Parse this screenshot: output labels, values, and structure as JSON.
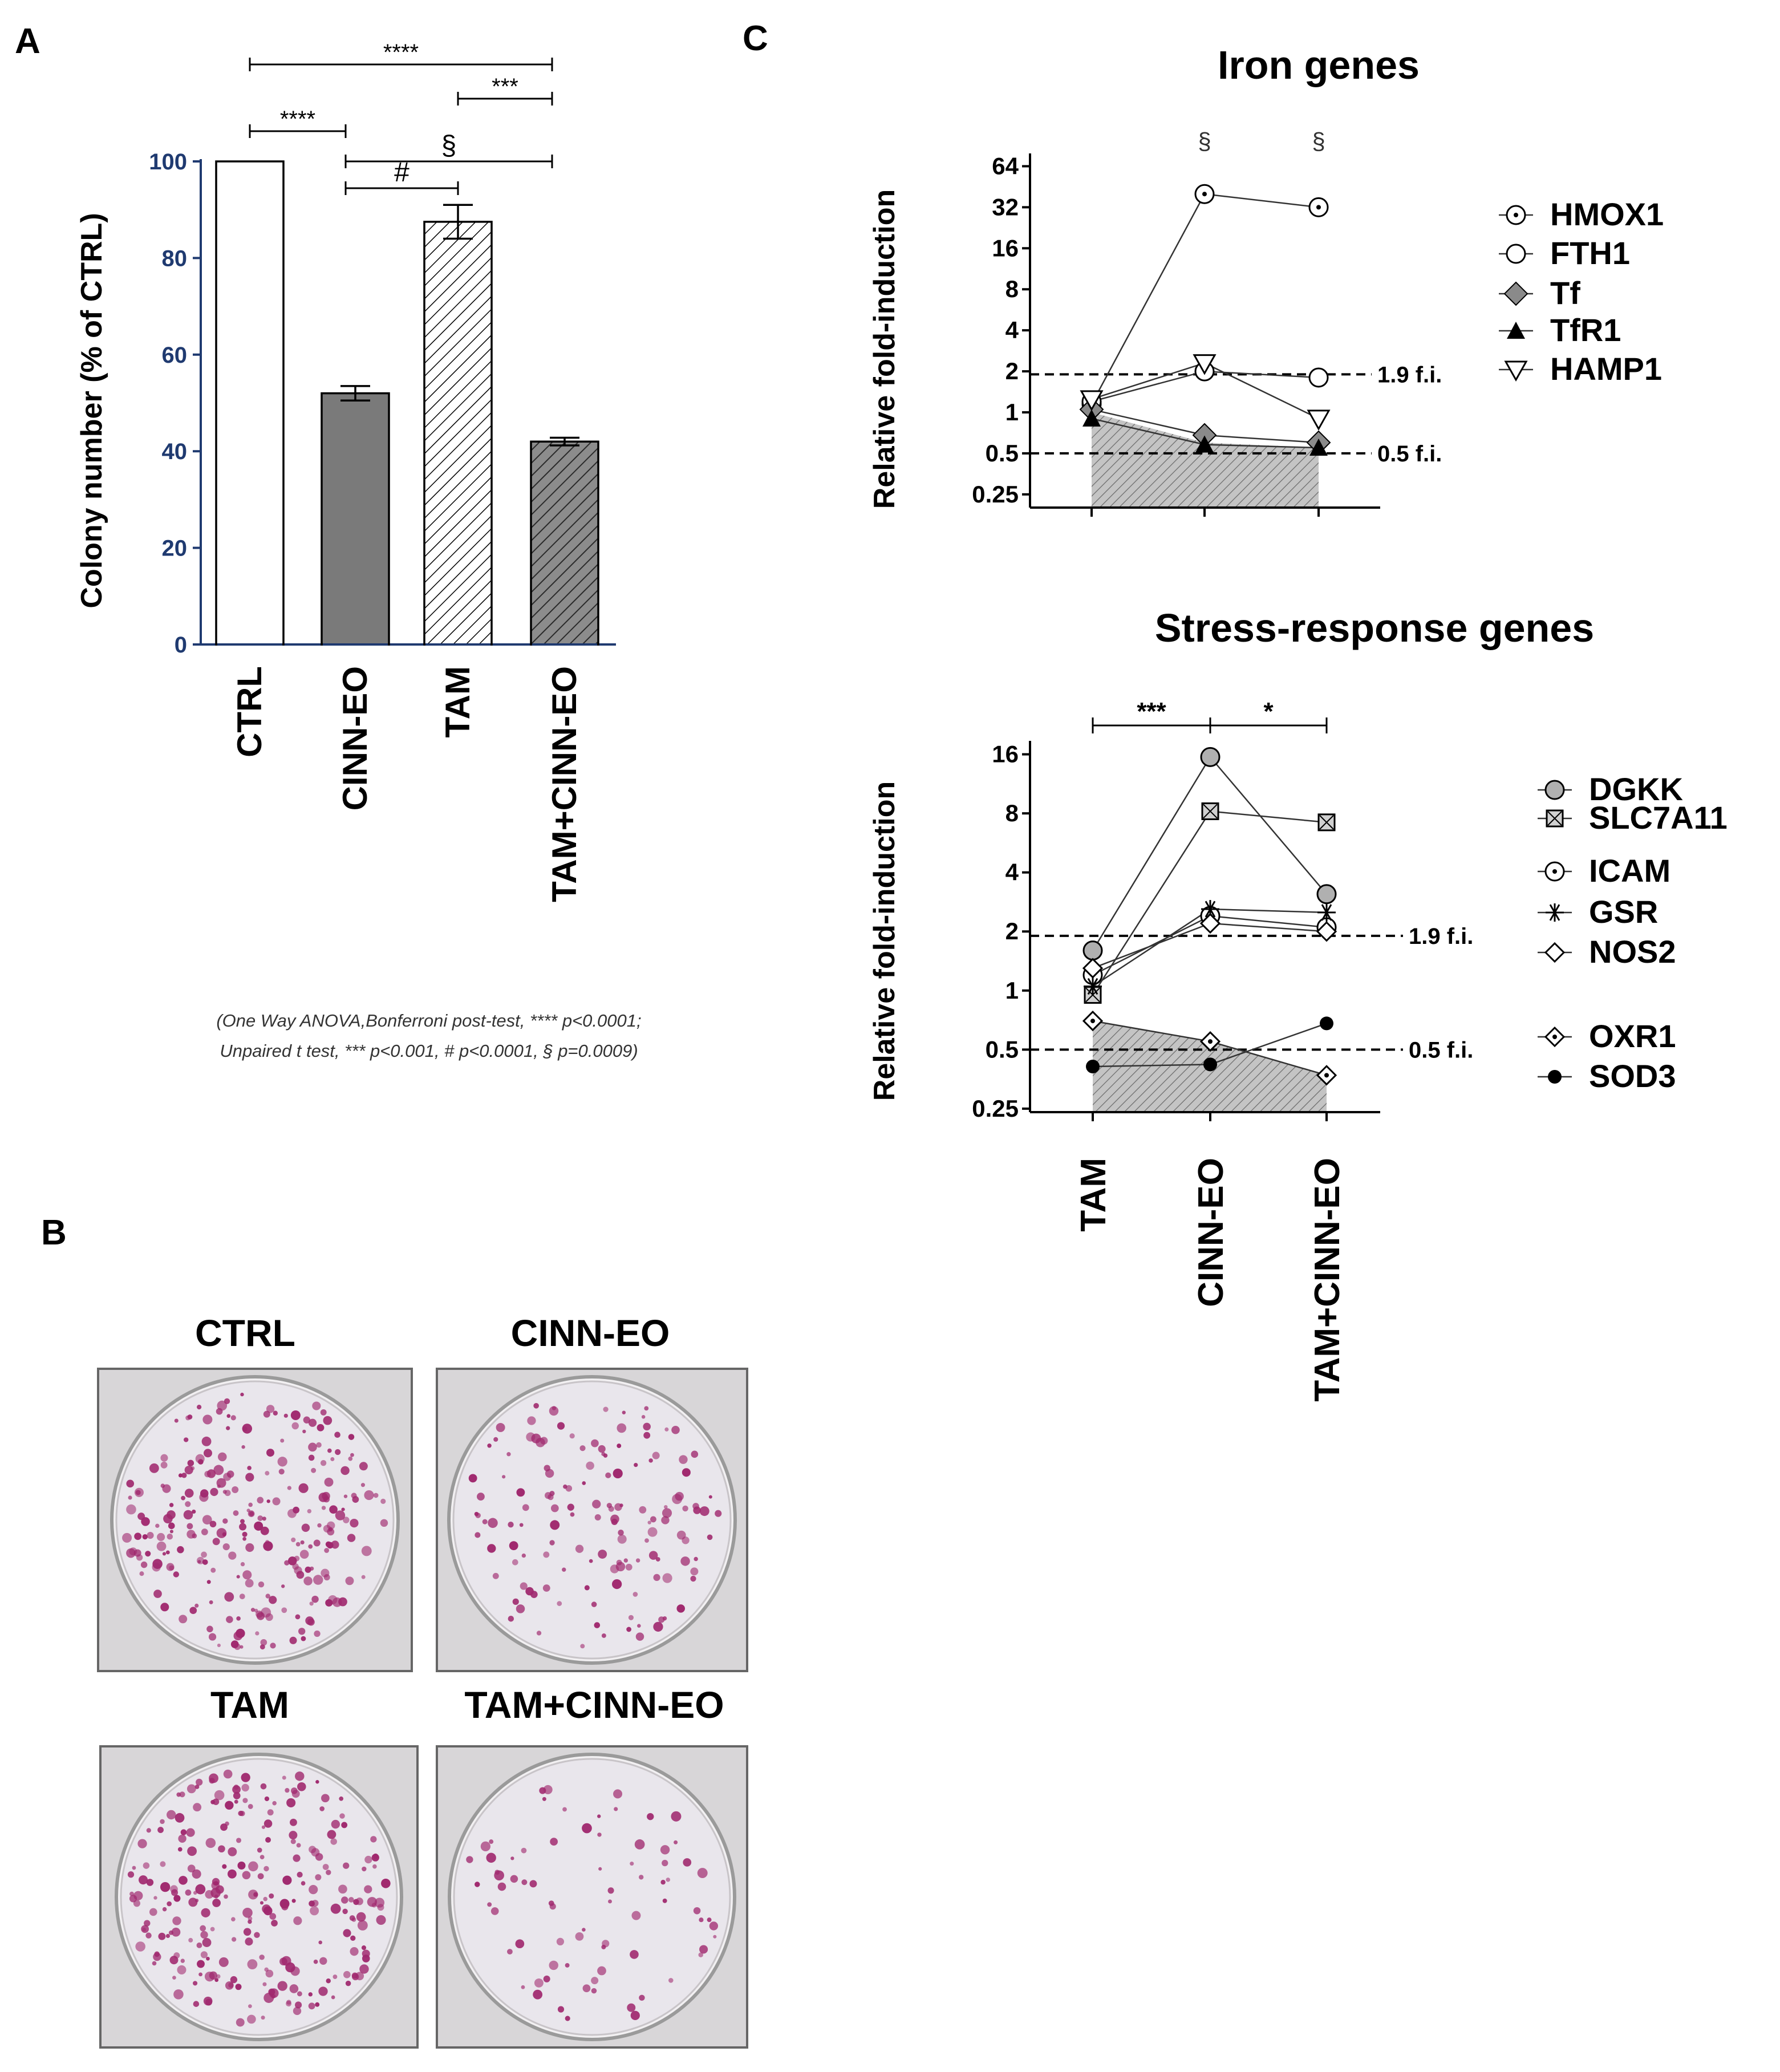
{
  "panels": {
    "a": "A",
    "b": "B",
    "c": "C"
  },
  "colors": {
    "axis_blue": "#1f3a70",
    "ink": "#000000",
    "bar_gray": "#7a7a7a",
    "shade_gray": "#bdbdbd",
    "dish_pink": "#a0286e",
    "dish_bg": "#e9e6ec"
  },
  "chart_data": [
    {
      "id": "colony",
      "type": "bar",
      "title": "",
      "ylabel": "Colony number (% of CTRL)",
      "xlabel": "",
      "ylim": [
        0,
        100
      ],
      "yticks": [
        0,
        20,
        40,
        60,
        80,
        100
      ],
      "categories": [
        "CTRL",
        "CINN-EO",
        "TAM",
        "TAM+CINN-EO"
      ],
      "values": [
        100,
        52,
        87.5,
        42
      ],
      "errors": [
        0,
        1.5,
        3.5,
        0.8
      ],
      "fills": [
        "white",
        "gray",
        "hatch",
        "gray-hatch"
      ],
      "significance": [
        {
          "from": "CTRL",
          "to": "TAM+CINN-EO",
          "label": "****"
        },
        {
          "from": "TAM",
          "to": "TAM+CINN-EO",
          "label": "***"
        },
        {
          "from": "CTRL",
          "to": "CINN-EO",
          "label": "****"
        },
        {
          "from": "CINN-EO",
          "to": "TAM+CINN-EO",
          "label": "§"
        },
        {
          "from": "CINN-EO",
          "to": "TAM",
          "label": "#"
        }
      ],
      "note_line1": "(One Way ANOVA,Bonferroni post-test, **** p<0.0001;",
      "note_line2": "Unpaired t test, *** p<0.001, # p<0.0001,  § p=0.0009)"
    },
    {
      "id": "iron",
      "type": "line",
      "title": "Iron genes",
      "ylabel": "Relative fold-induction",
      "yscale": "log2",
      "ylim": [
        0.2,
        75
      ],
      "ytick_values": [
        0.25,
        0.5,
        1,
        2,
        4,
        8,
        16,
        32,
        64
      ],
      "ytick_labels": [
        "0.25",
        "0.5",
        "1",
        "2",
        "4",
        "8",
        "16",
        "32",
        "64"
      ],
      "categories": [
        "TAM",
        "CINN-EO",
        "TAM+CINN-EO"
      ],
      "thresholds": [
        {
          "value": 1.9,
          "label": "1.9 f.i."
        },
        {
          "value": 0.5,
          "label": "0.5 f.i."
        }
      ],
      "shaded_band": [
        1.0,
        0.6,
        0.55
      ],
      "series": [
        {
          "name": "HMOX1",
          "marker": "circle-dot",
          "values": [
            1.15,
            40,
            32
          ]
        },
        {
          "name": "FTH1",
          "marker": "circle-open",
          "values": [
            1.2,
            2.0,
            1.8
          ]
        },
        {
          "name": "Tf",
          "marker": "diamond-gray",
          "values": [
            1.05,
            0.68,
            0.6
          ]
        },
        {
          "name": "TfR1",
          "marker": "triangle-up-filled",
          "values": [
            0.9,
            0.58,
            0.55
          ]
        },
        {
          "name": "HAMP1",
          "marker": "triangle-down-open",
          "values": [
            1.25,
            2.3,
            0.9
          ]
        }
      ],
      "annotations": [
        {
          "category": "CINN-EO",
          "label": "§"
        },
        {
          "category": "TAM+CINN-EO",
          "label": "§"
        }
      ]
    },
    {
      "id": "stress",
      "type": "line",
      "title": "Stress-response genes",
      "ylabel": "Relative fold-induction",
      "yscale": "log2",
      "ylim": [
        0.24,
        18
      ],
      "ytick_values": [
        0.25,
        0.5,
        1,
        2,
        4,
        8,
        16
      ],
      "ytick_labels": [
        "0.25",
        "0.5",
        "1",
        "2",
        "4",
        "8",
        "16"
      ],
      "categories": [
        "TAM",
        "CINN-EO",
        "TAM+CINN-EO"
      ],
      "thresholds": [
        {
          "value": 1.9,
          "label": "1.9 f.i."
        },
        {
          "value": 0.5,
          "label": "0.5 f.i."
        }
      ],
      "shaded_band": [
        0.7,
        0.55,
        0.37
      ],
      "series": [
        {
          "name": "DGKK",
          "marker": "circle-gray",
          "values": [
            1.6,
            15.5,
            3.1
          ]
        },
        {
          "name": "SLC7A11",
          "marker": "square-x",
          "values": [
            0.95,
            8.2,
            7.2
          ]
        },
        {
          "name": "ICAM",
          "marker": "circle-dot",
          "values": [
            1.2,
            2.4,
            2.1
          ]
        },
        {
          "name": "GSR",
          "marker": "asterisk",
          "values": [
            1.05,
            2.6,
            2.5
          ]
        },
        {
          "name": "NOS2",
          "marker": "diamond-open",
          "values": [
            1.3,
            2.2,
            2.0
          ]
        },
        {
          "name": "OXR1",
          "marker": "diamond-dot",
          "values": [
            0.7,
            0.55,
            0.37
          ]
        },
        {
          "name": "SOD3",
          "marker": "circle-filled",
          "values": [
            0.41,
            0.42,
            0.68
          ]
        }
      ],
      "significance": [
        {
          "from": "TAM",
          "to": "CINN-EO",
          "label": "***"
        },
        {
          "from": "CINN-EO",
          "to": "TAM+CINN-EO",
          "label": "*"
        }
      ]
    }
  ],
  "dishes": {
    "items": [
      {
        "label": "CTRL",
        "density": "high"
      },
      {
        "label": "CINN-EO",
        "density": "medium"
      },
      {
        "label": "TAM",
        "density": "high"
      },
      {
        "label": "TAM+CINN-EO",
        "density": "low"
      }
    ]
  }
}
